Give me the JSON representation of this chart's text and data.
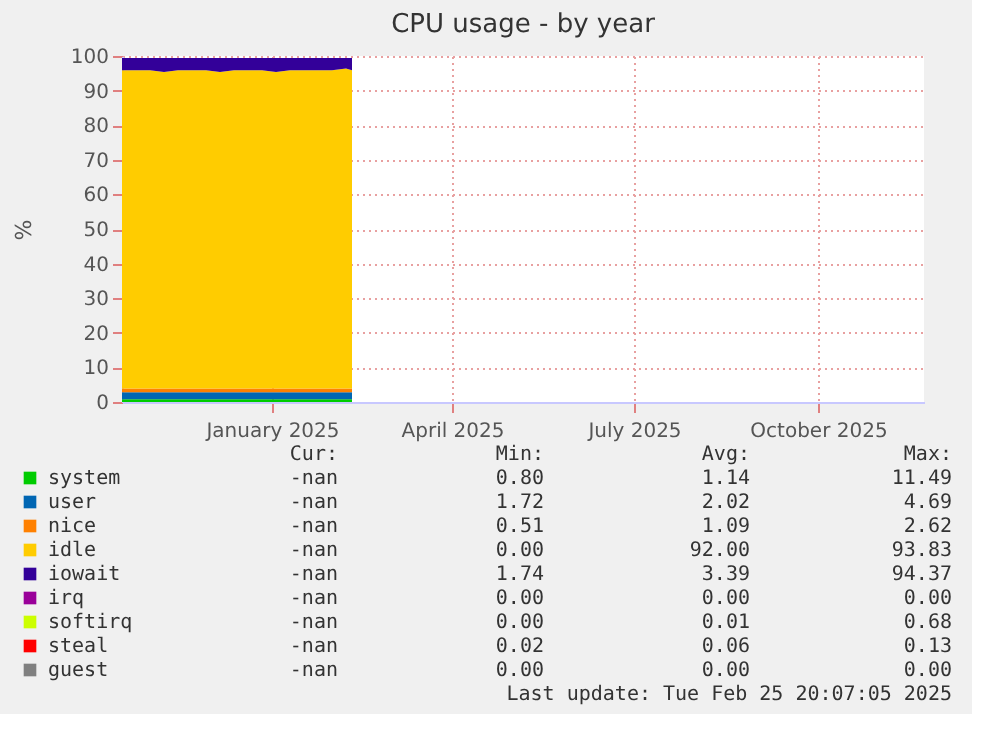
{
  "chart_data": {
    "type": "area",
    "stacked": true,
    "title": "CPU usage - by year",
    "ylabel": "%",
    "x": [
      "2024-10-18",
      "2024-10-25",
      "2024-11-01",
      "2024-11-08",
      "2024-11-15",
      "2024-11-22",
      "2024-11-29",
      "2024-12-06",
      "2024-12-13",
      "2024-12-20",
      "2024-12-27",
      "2025-01-03",
      "2025-01-10",
      "2025-01-17",
      "2025-01-24",
      "2025-01-31",
      "2025-02-07",
      "2025-02-10"
    ],
    "series": [
      {
        "name": "system",
        "color": "#00cc00",
        "values": [
          0.8,
          0.8,
          0.8,
          0.8,
          0.8,
          0.8,
          0.8,
          0.8,
          0.8,
          0.8,
          0.8,
          0.8,
          0.8,
          0.8,
          0.8,
          0.8,
          0.8,
          0.8
        ]
      },
      {
        "name": "user",
        "color": "#0066b3",
        "values": [
          2.0,
          2.0,
          2.0,
          2.0,
          2.0,
          2.0,
          2.0,
          2.0,
          2.0,
          2.0,
          2.0,
          2.0,
          2.0,
          2.0,
          2.0,
          2.0,
          2.0,
          2.0
        ]
      },
      {
        "name": "nice",
        "color": "#ff8000",
        "values": [
          1.1,
          1.1,
          1.1,
          1.1,
          1.1,
          1.1,
          1.1,
          1.1,
          1.1,
          1.1,
          1.1,
          1.1,
          1.1,
          1.1,
          1.1,
          1.1,
          1.1,
          1.1
        ]
      },
      {
        "name": "idle",
        "color": "#ffcc00",
        "values": [
          92,
          92,
          92,
          91.5,
          92,
          92,
          92,
          91.5,
          92,
          92,
          92,
          91.5,
          92,
          92,
          92,
          92,
          92.5,
          92
        ]
      },
      {
        "name": "iowait",
        "color": "#330099",
        "values": [
          3.5,
          3.5,
          3.5,
          4,
          3.5,
          3.5,
          3.5,
          4,
          3.5,
          3.5,
          3.5,
          4,
          3.5,
          3.5,
          3.5,
          3.5,
          3,
          3.5
        ]
      },
      {
        "name": "irq",
        "color": "#990099",
        "values": [
          null,
          null,
          null,
          null,
          null,
          null,
          null,
          null,
          null,
          null,
          null,
          null,
          null,
          null,
          null,
          null,
          null,
          null
        ]
      },
      {
        "name": "softirq",
        "color": "#ccff00",
        "values": [
          null,
          null,
          null,
          null,
          null,
          null,
          null,
          null,
          null,
          null,
          null,
          null,
          null,
          null,
          null,
          null,
          null,
          null
        ]
      },
      {
        "name": "steal",
        "color": "#ff0000",
        "values": [
          null,
          null,
          null,
          null,
          null,
          null,
          null,
          null,
          null,
          null,
          null,
          null,
          null,
          null,
          null,
          null,
          null,
          null
        ]
      },
      {
        "name": "guest",
        "color": "#808080",
        "values": [
          null,
          null,
          null,
          null,
          null,
          null,
          null,
          null,
          null,
          null,
          null,
          null,
          null,
          null,
          null,
          null,
          null,
          null
        ]
      }
    ],
    "xlim": [
      "2024-10-18",
      "2025-11-23"
    ],
    "xticks": [
      {
        "value": "2025-01-01",
        "label": "January 2025"
      },
      {
        "value": "2025-04-01",
        "label": "April 2025"
      },
      {
        "value": "2025-07-01",
        "label": "July 2025"
      },
      {
        "value": "2025-10-01",
        "label": "October 2025"
      }
    ],
    "ylim": [
      0,
      100
    ],
    "yticks": [
      0,
      10,
      20,
      30,
      40,
      50,
      60,
      70,
      80,
      90,
      100
    ],
    "grid": true,
    "legend": "bottom",
    "annotations": [
      "Cur:",
      "Min:",
      "Avg:",
      "Max:",
      "-nan",
      "0.80",
      "1.14",
      "11.49",
      "-nan",
      "1.72",
      "2.02",
      "4.69",
      "-nan",
      "0.51",
      "1.09",
      "2.62",
      "-nan",
      "0.00",
      "92.00",
      "93.83",
      "-nan",
      "1.74",
      "3.39",
      "94.37",
      "-nan",
      "0.00",
      "0.00",
      "0.00",
      "-nan",
      "0.00",
      "0.01",
      "0.68",
      "-nan",
      "0.02",
      "0.06",
      "0.13",
      "-nan",
      "0.00",
      "0.00",
      "0.00",
      "Last update: Tue Feb 25 20:07:05 2025"
    ]
  }
}
